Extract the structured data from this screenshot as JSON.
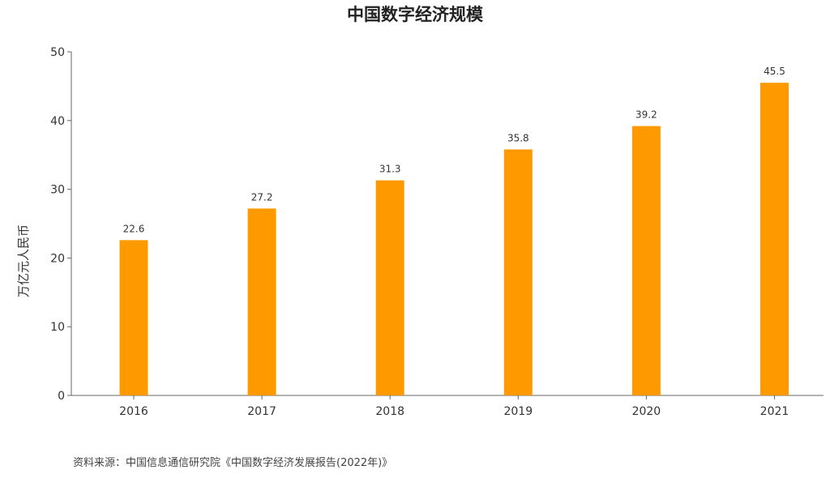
{
  "source": "资料来源：中国信息通信研究院《中国数字经济发展报告(2022年)》",
  "colors": {
    "bar": "#FF9900",
    "axis": "#666666"
  },
  "chart_data": {
    "type": "bar",
    "title": "中国数字经济规模",
    "xlabel": "",
    "ylabel": "万亿元人民币",
    "categories": [
      "2016",
      "2017",
      "2018",
      "2019",
      "2020",
      "2021"
    ],
    "values": [
      22.6,
      27.2,
      31.3,
      35.8,
      39.2,
      45.5
    ],
    "data_labels": [
      "22.6",
      "27.2",
      "31.3",
      "35.8",
      "39.2",
      "45.5"
    ],
    "ylim": [
      0,
      50
    ],
    "yticks": [
      0,
      10,
      20,
      30,
      40,
      50
    ],
    "grid": false,
    "legend": "none"
  }
}
